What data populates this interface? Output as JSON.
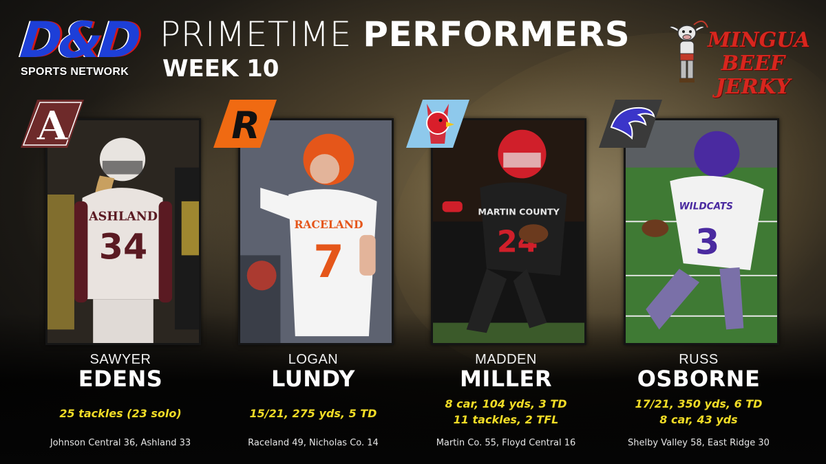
{
  "header": {
    "network_logo": {
      "letters": "D&D",
      "subtitle": "SPORTS NETWORK",
      "colors": {
        "blue": "#1d3fd8",
        "red": "#d01818"
      }
    },
    "title_light": "PRIMETIME",
    "title_bold": "PERFORMERS",
    "week": "WEEK 10",
    "sponsor": {
      "line1": "MINGUA",
      "line2": "BEEF JERKY",
      "color": "#d8261e",
      "mascot_icon": "bull-cowboy-mascot-icon"
    }
  },
  "players": [
    {
      "first": "SAWYER",
      "last": "EDENS",
      "stats": [
        "25 tackles (23 solo)"
      ],
      "score": "Johnson Central 36, Ashland 33",
      "badge": {
        "icon": "ashland-a-logo-icon",
        "colors": [
          "#6e2a2a",
          "#ffffff"
        ]
      },
      "jersey": "34",
      "jersey_colors": [
        "#e9e3df",
        "#5a1a22"
      ]
    },
    {
      "first": "LOGAN",
      "last": "LUNDY",
      "stats": [
        "15/21, 275 yds, 5 TD"
      ],
      "score": "Raceland 49, Nicholas Co. 14",
      "badge": {
        "icon": "raceland-r-logo-icon",
        "colors": [
          "#f06a12",
          "#111111"
        ]
      },
      "jersey": "7",
      "jersey_colors": [
        "#f4f4f4",
        "#e5561a"
      ]
    },
    {
      "first": "MADDEN",
      "last": "MILLER",
      "stats": [
        "8 car, 104 yds, 3 TD",
        "11 tackles, 2 TFL"
      ],
      "score": "Martin Co. 55, Floyd Central 16",
      "badge": {
        "icon": "cardinal-logo-icon",
        "colors": [
          "#8ec9ec",
          "#d91e2a"
        ]
      },
      "jersey": "24",
      "jersey_colors": [
        "#1f1f1f",
        "#d01f2a"
      ]
    },
    {
      "first": "RUSS",
      "last": "OSBORNE",
      "stats": [
        "17/21, 350 yds, 6 TD",
        "8 car, 43 yds"
      ],
      "score": "Shelby Valley 58, East Ridge 30",
      "badge": {
        "icon": "wildcat-logo-icon",
        "colors": [
          "#3a3a3a",
          "#3b35c9"
        ]
      },
      "jersey": "3",
      "jersey_colors": [
        "#f2f2f2",
        "#4a2aa0"
      ]
    }
  ],
  "accent_color": "#f1dc26"
}
